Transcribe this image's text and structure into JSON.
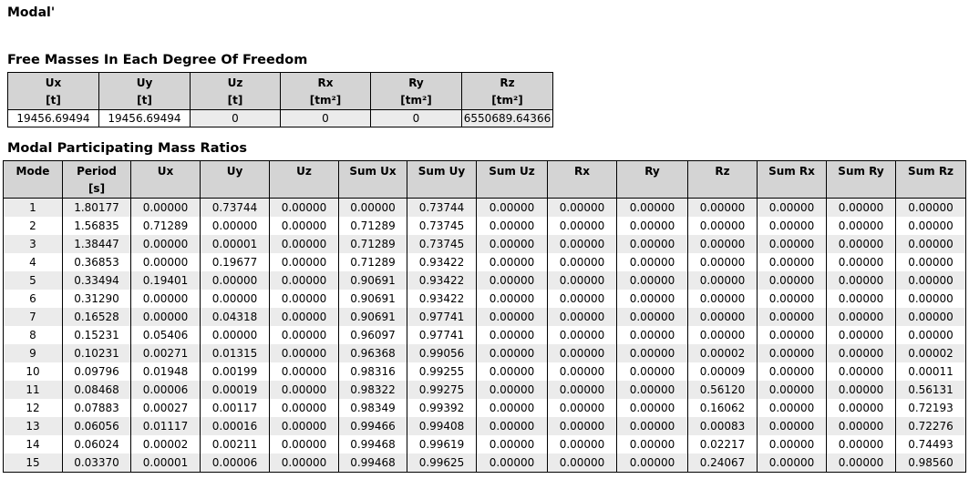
{
  "title": "Modal'",
  "free_masses": {
    "heading": "Free Masses In Each Degree Of Freedom",
    "columns": [
      {
        "label": "Ux",
        "unit": "[t]"
      },
      {
        "label": "Uy",
        "unit": "[t]"
      },
      {
        "label": "Uz",
        "unit": "[t]"
      },
      {
        "label": "Rx",
        "unit": "[tm²]"
      },
      {
        "label": "Ry",
        "unit": "[tm²]"
      },
      {
        "label": "Rz",
        "unit": "[tm²]"
      }
    ],
    "values": [
      "19456.69494",
      "19456.69494",
      "0",
      "0",
      "0",
      "6550689.64366"
    ]
  },
  "modal_ratios": {
    "heading": "Modal Participating Mass Ratios",
    "columns": [
      {
        "label": "Mode",
        "unit": ""
      },
      {
        "label": "Period",
        "unit": "[s]"
      },
      {
        "label": "Ux",
        "unit": ""
      },
      {
        "label": "Uy",
        "unit": ""
      },
      {
        "label": "Uz",
        "unit": ""
      },
      {
        "label": "Sum Ux",
        "unit": ""
      },
      {
        "label": "Sum Uy",
        "unit": ""
      },
      {
        "label": "Sum Uz",
        "unit": ""
      },
      {
        "label": "Rx",
        "unit": ""
      },
      {
        "label": "Ry",
        "unit": ""
      },
      {
        "label": "Rz",
        "unit": ""
      },
      {
        "label": "Sum Rx",
        "unit": ""
      },
      {
        "label": "Sum Ry",
        "unit": ""
      },
      {
        "label": "Sum Rz",
        "unit": ""
      }
    ],
    "rows": [
      [
        "1",
        "1.80177",
        "0.00000",
        "0.73744",
        "0.00000",
        "0.00000",
        "0.73744",
        "0.00000",
        "0.00000",
        "0.00000",
        "0.00000",
        "0.00000",
        "0.00000",
        "0.00000"
      ],
      [
        "2",
        "1.56835",
        "0.71289",
        "0.00000",
        "0.00000",
        "0.71289",
        "0.73745",
        "0.00000",
        "0.00000",
        "0.00000",
        "0.00000",
        "0.00000",
        "0.00000",
        "0.00000"
      ],
      [
        "3",
        "1.38447",
        "0.00000",
        "0.00001",
        "0.00000",
        "0.71289",
        "0.73745",
        "0.00000",
        "0.00000",
        "0.00000",
        "0.00000",
        "0.00000",
        "0.00000",
        "0.00000"
      ],
      [
        "4",
        "0.36853",
        "0.00000",
        "0.19677",
        "0.00000",
        "0.71289",
        "0.93422",
        "0.00000",
        "0.00000",
        "0.00000",
        "0.00000",
        "0.00000",
        "0.00000",
        "0.00000"
      ],
      [
        "5",
        "0.33494",
        "0.19401",
        "0.00000",
        "0.00000",
        "0.90691",
        "0.93422",
        "0.00000",
        "0.00000",
        "0.00000",
        "0.00000",
        "0.00000",
        "0.00000",
        "0.00000"
      ],
      [
        "6",
        "0.31290",
        "0.00000",
        "0.00000",
        "0.00000",
        "0.90691",
        "0.93422",
        "0.00000",
        "0.00000",
        "0.00000",
        "0.00000",
        "0.00000",
        "0.00000",
        "0.00000"
      ],
      [
        "7",
        "0.16528",
        "0.00000",
        "0.04318",
        "0.00000",
        "0.90691",
        "0.97741",
        "0.00000",
        "0.00000",
        "0.00000",
        "0.00000",
        "0.00000",
        "0.00000",
        "0.00000"
      ],
      [
        "8",
        "0.15231",
        "0.05406",
        "0.00000",
        "0.00000",
        "0.96097",
        "0.97741",
        "0.00000",
        "0.00000",
        "0.00000",
        "0.00000",
        "0.00000",
        "0.00000",
        "0.00000"
      ],
      [
        "9",
        "0.10231",
        "0.00271",
        "0.01315",
        "0.00000",
        "0.96368",
        "0.99056",
        "0.00000",
        "0.00000",
        "0.00000",
        "0.00002",
        "0.00000",
        "0.00000",
        "0.00002"
      ],
      [
        "10",
        "0.09796",
        "0.01948",
        "0.00199",
        "0.00000",
        "0.98316",
        "0.99255",
        "0.00000",
        "0.00000",
        "0.00000",
        "0.00009",
        "0.00000",
        "0.00000",
        "0.00011"
      ],
      [
        "11",
        "0.08468",
        "0.00006",
        "0.00019",
        "0.00000",
        "0.98322",
        "0.99275",
        "0.00000",
        "0.00000",
        "0.00000",
        "0.56120",
        "0.00000",
        "0.00000",
        "0.56131"
      ],
      [
        "12",
        "0.07883",
        "0.00027",
        "0.00117",
        "0.00000",
        "0.98349",
        "0.99392",
        "0.00000",
        "0.00000",
        "0.00000",
        "0.16062",
        "0.00000",
        "0.00000",
        "0.72193"
      ],
      [
        "13",
        "0.06056",
        "0.01117",
        "0.00016",
        "0.00000",
        "0.99466",
        "0.99408",
        "0.00000",
        "0.00000",
        "0.00000",
        "0.00083",
        "0.00000",
        "0.00000",
        "0.72276"
      ],
      [
        "14",
        "0.06024",
        "0.00002",
        "0.00211",
        "0.00000",
        "0.99468",
        "0.99619",
        "0.00000",
        "0.00000",
        "0.00000",
        "0.02217",
        "0.00000",
        "0.00000",
        "0.74493"
      ],
      [
        "15",
        "0.03370",
        "0.00001",
        "0.00006",
        "0.00000",
        "0.99468",
        "0.99625",
        "0.00000",
        "0.00000",
        "0.00000",
        "0.24067",
        "0.00000",
        "0.00000",
        "0.98560"
      ]
    ]
  }
}
